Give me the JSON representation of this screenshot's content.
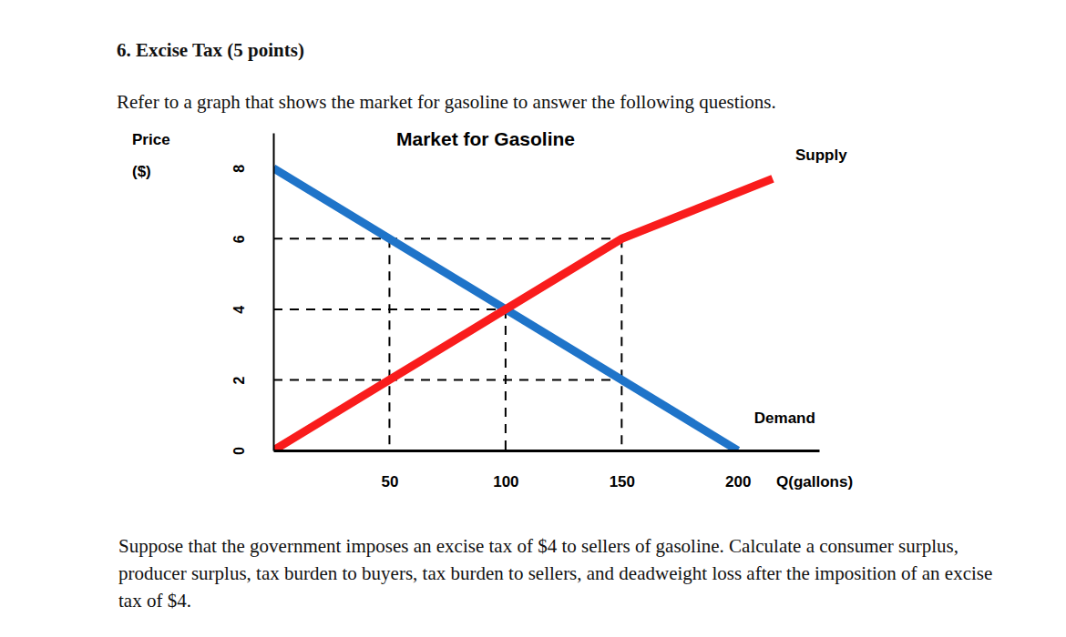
{
  "heading": "6. Excise Tax (5 points)",
  "intro": "Refer to a graph that shows the market for gasoline to answer the following questions.",
  "question": "Suppose that the government imposes an excise tax of $4 to sellers of gasoline. Calculate a consumer surplus, producer surplus, tax burden to buyers, tax burden to sellers, and deadweight loss after the imposition of an excise tax of $4.",
  "chart_data": {
    "type": "line",
    "title": "Market for Gasoline",
    "ylabel": [
      "Price",
      "($)"
    ],
    "xlabel": "Q(gallons)",
    "series": [
      {
        "name": "Demand",
        "color": "#1f74c9",
        "x": [
          0,
          200
        ],
        "values": [
          8,
          0
        ]
      },
      {
        "name": "Supply",
        "color": "#f91c1c",
        "x": [
          0,
          50,
          100,
          150,
          215
        ],
        "values": [
          0,
          2,
          4,
          6,
          7.7
        ]
      }
    ],
    "xlim": [
      0,
      235
    ],
    "ylim": [
      0,
      9
    ],
    "xticks": [
      50,
      100,
      150,
      200
    ],
    "yticks": [
      0,
      2,
      4,
      6,
      8
    ],
    "guides": [
      {
        "x": [
          0,
          150
        ],
        "y": [
          6,
          6
        ]
      },
      {
        "x": [
          0,
          100
        ],
        "y": [
          4,
          4
        ]
      },
      {
        "x": [
          0,
          150
        ],
        "y": [
          2,
          2
        ]
      },
      {
        "x": [
          50,
          50
        ],
        "y": [
          6,
          0
        ]
      },
      {
        "x": [
          100,
          100
        ],
        "y": [
          4,
          0
        ]
      },
      {
        "x": [
          150,
          150
        ],
        "y": [
          6,
          0
        ]
      }
    ]
  }
}
